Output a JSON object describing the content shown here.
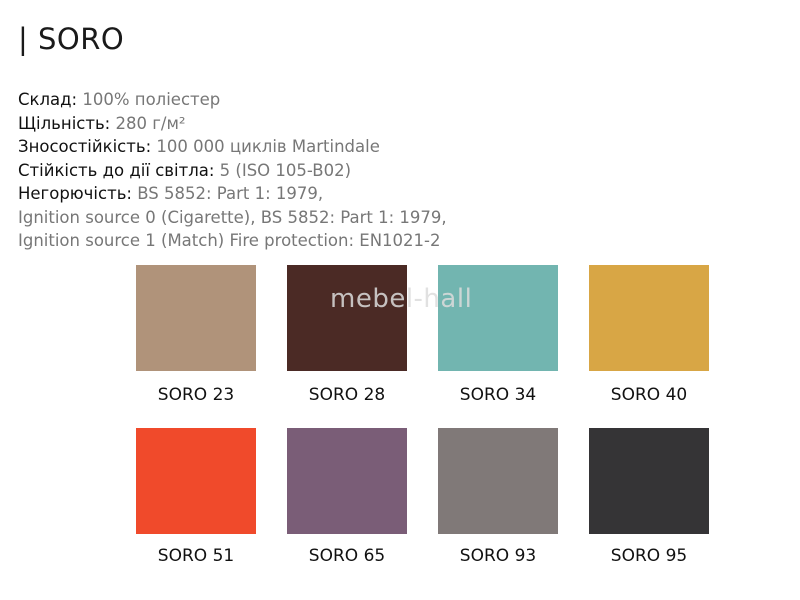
{
  "title": "| SORO",
  "specs": [
    {
      "label": "Склад:",
      "value": " 100% поліестер"
    },
    {
      "label": "Щільність:",
      "value": " 280 г/м²"
    },
    {
      "label": "Зносостійкість:",
      "value": " 100 000 циклів Martindale"
    },
    {
      "label": "Стійкість до дії світла:",
      "value": " 5 (ISO 105-B02)"
    },
    {
      "label": "Негорючість:",
      "value": " BS 5852: Part 1: 1979,"
    },
    {
      "label": "",
      "value": "Ignition source 0 (Cigarette), BS 5852: Part 1: 1979,"
    },
    {
      "label": "",
      "value": "Ignition source 1 (Match) Fire protection: EN1021-2"
    }
  ],
  "watermark": "mebel-hall",
  "swatches": [
    {
      "name": "SORO 23",
      "color": "#b0937a"
    },
    {
      "name": "SORO 28",
      "color": "#4b2a25"
    },
    {
      "name": "SORO 34",
      "color": "#72b5b0"
    },
    {
      "name": "SORO 40",
      "color": "#d8a645"
    },
    {
      "name": "SORO 51",
      "color": "#f04a2b"
    },
    {
      "name": "SORO 65",
      "color": "#7a5d77"
    },
    {
      "name": "SORO 93",
      "color": "#807978"
    },
    {
      "name": "SORO 95",
      "color": "#353436"
    }
  ]
}
